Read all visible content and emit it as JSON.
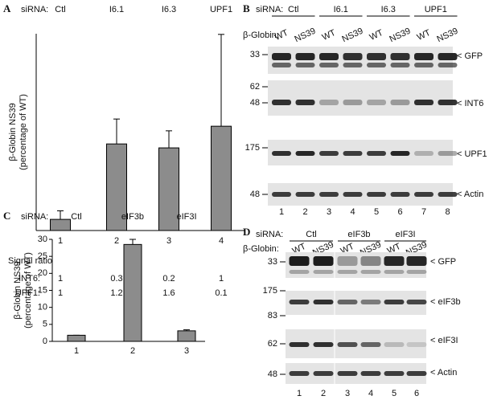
{
  "panel_letters": [
    "A",
    "B",
    "C",
    "D"
  ],
  "chart_data": [
    {
      "type": "bar",
      "ylabel": "β-Globin NS39\n(percentage of WT)",
      "sirna_label": "siRNA:",
      "sirna": [
        "Ctl",
        "I6.1",
        "I6.3",
        "UPF1"
      ],
      "categories": [
        "1",
        "2",
        "3",
        "4"
      ],
      "values": [
        1.7,
        13.2,
        12.6,
        15.9
      ],
      "errors": [
        1.3,
        3.8,
        2.6,
        14
      ],
      "color": "#8c8c8c",
      "ylim": [
        0,
        30
      ]
    },
    {
      "type": "bar",
      "ylabel": "β-Globin NS39\n(percentage of WT)",
      "sirna_label": "siRNA:",
      "sirna": [
        "Ctl",
        "eIF3b",
        "eIF3I"
      ],
      "categories": [
        "1",
        "2",
        "3"
      ],
      "values": [
        1.8,
        28.5,
        3.1
      ],
      "errors": [
        0,
        1.5,
        0.3
      ],
      "color": "#8c8c8c",
      "ylim": [
        0,
        30
      ],
      "yticks": [
        0,
        5,
        10,
        15,
        20,
        25,
        30
      ]
    }
  ],
  "signal_ratio": {
    "title": "Signal ratio",
    "rows": [
      {
        "label": "INT6:",
        "values": [
          "1",
          "0.3",
          "0.2",
          "1"
        ]
      },
      {
        "label": "UPF1:",
        "values": [
          "1",
          "1.2",
          "1.6",
          "0.1"
        ]
      }
    ]
  },
  "blot_b": {
    "sirna_label": "siRNA:",
    "groups": [
      "Ctl",
      "I6.1",
      "I6.3",
      "UPF1"
    ],
    "globin_label": "β-Globin:",
    "lanes": [
      "WT",
      "NS39",
      "WT",
      "NS39",
      "WT",
      "NS39",
      "WT",
      "NS39"
    ],
    "markers": [
      "33",
      "62",
      "48",
      "175",
      "48"
    ],
    "bands": [
      "< GFP",
      "< INT6",
      "< UPF1",
      "< Actin"
    ],
    "lane_numbers": [
      "1",
      "2",
      "3",
      "4",
      "5",
      "6",
      "7",
      "8"
    ]
  },
  "blot_d": {
    "sirna_label": "siRNA:",
    "groups": [
      "Ctl",
      "eIF3b",
      "eIF3I"
    ],
    "globin_label": "β-Globin:",
    "lanes": [
      "WT",
      "NS39",
      "WT",
      "NS39",
      "WT",
      "NS39"
    ],
    "markers": [
      "33",
      "175",
      "83",
      "62",
      "48"
    ],
    "bands": [
      "< GFP",
      "< eIF3b",
      "< eIF3I",
      "< Actin"
    ],
    "lane_numbers": [
      "1",
      "2",
      "3",
      "4",
      "5",
      "6"
    ]
  }
}
